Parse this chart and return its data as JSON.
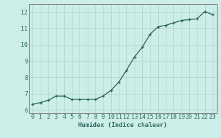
{
  "x": [
    0,
    1,
    2,
    3,
    4,
    5,
    6,
    7,
    8,
    9,
    10,
    11,
    12,
    13,
    14,
    15,
    16,
    17,
    18,
    19,
    20,
    21,
    22,
    23
  ],
  "y": [
    6.35,
    6.45,
    6.6,
    6.85,
    6.85,
    6.65,
    6.65,
    6.65,
    6.65,
    6.85,
    7.2,
    7.7,
    8.45,
    9.25,
    9.85,
    10.65,
    11.1,
    11.2,
    11.35,
    11.5,
    11.55,
    11.6,
    12.05,
    11.85
  ],
  "line_color": "#2e6b5e",
  "bg_color": "#cceee8",
  "grid_color": "#b8d8d2",
  "xlabel": "Humidex (Indice chaleur)",
  "xlim": [
    -0.5,
    23.5
  ],
  "ylim": [
    5.8,
    12.5
  ],
  "yticks": [
    6,
    7,
    8,
    9,
    10,
    11,
    12
  ],
  "xticks": [
    0,
    1,
    2,
    3,
    4,
    5,
    6,
    7,
    8,
    9,
    10,
    11,
    12,
    13,
    14,
    15,
    16,
    17,
    18,
    19,
    20,
    21,
    22,
    23
  ],
  "marker": "+",
  "markersize": 3.5,
  "linewidth": 1.0,
  "xlabel_fontsize": 6.5,
  "tick_fontsize": 6.0,
  "spine_color": "#888888"
}
